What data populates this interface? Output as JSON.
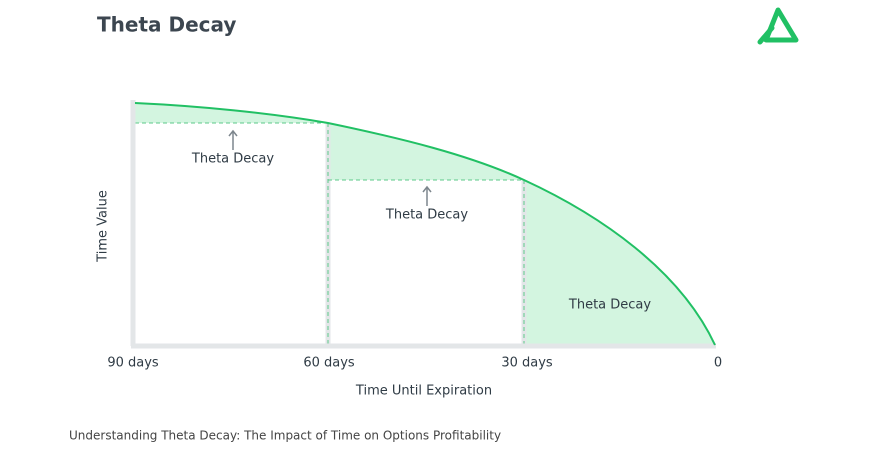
{
  "header": {
    "title": "Theta Decay"
  },
  "diagram": {
    "y_axis_label": "Time Value",
    "x_axis_label": "Time Until Expiration",
    "x_labels": [
      "90 days",
      "60 days",
      "30 days",
      "0"
    ],
    "annotations": [
      "Theta Decay",
      "Theta Decay",
      "Theta Decay"
    ]
  },
  "caption": "Understanding Theta Decay: The Impact of Time on Options Profitability"
}
